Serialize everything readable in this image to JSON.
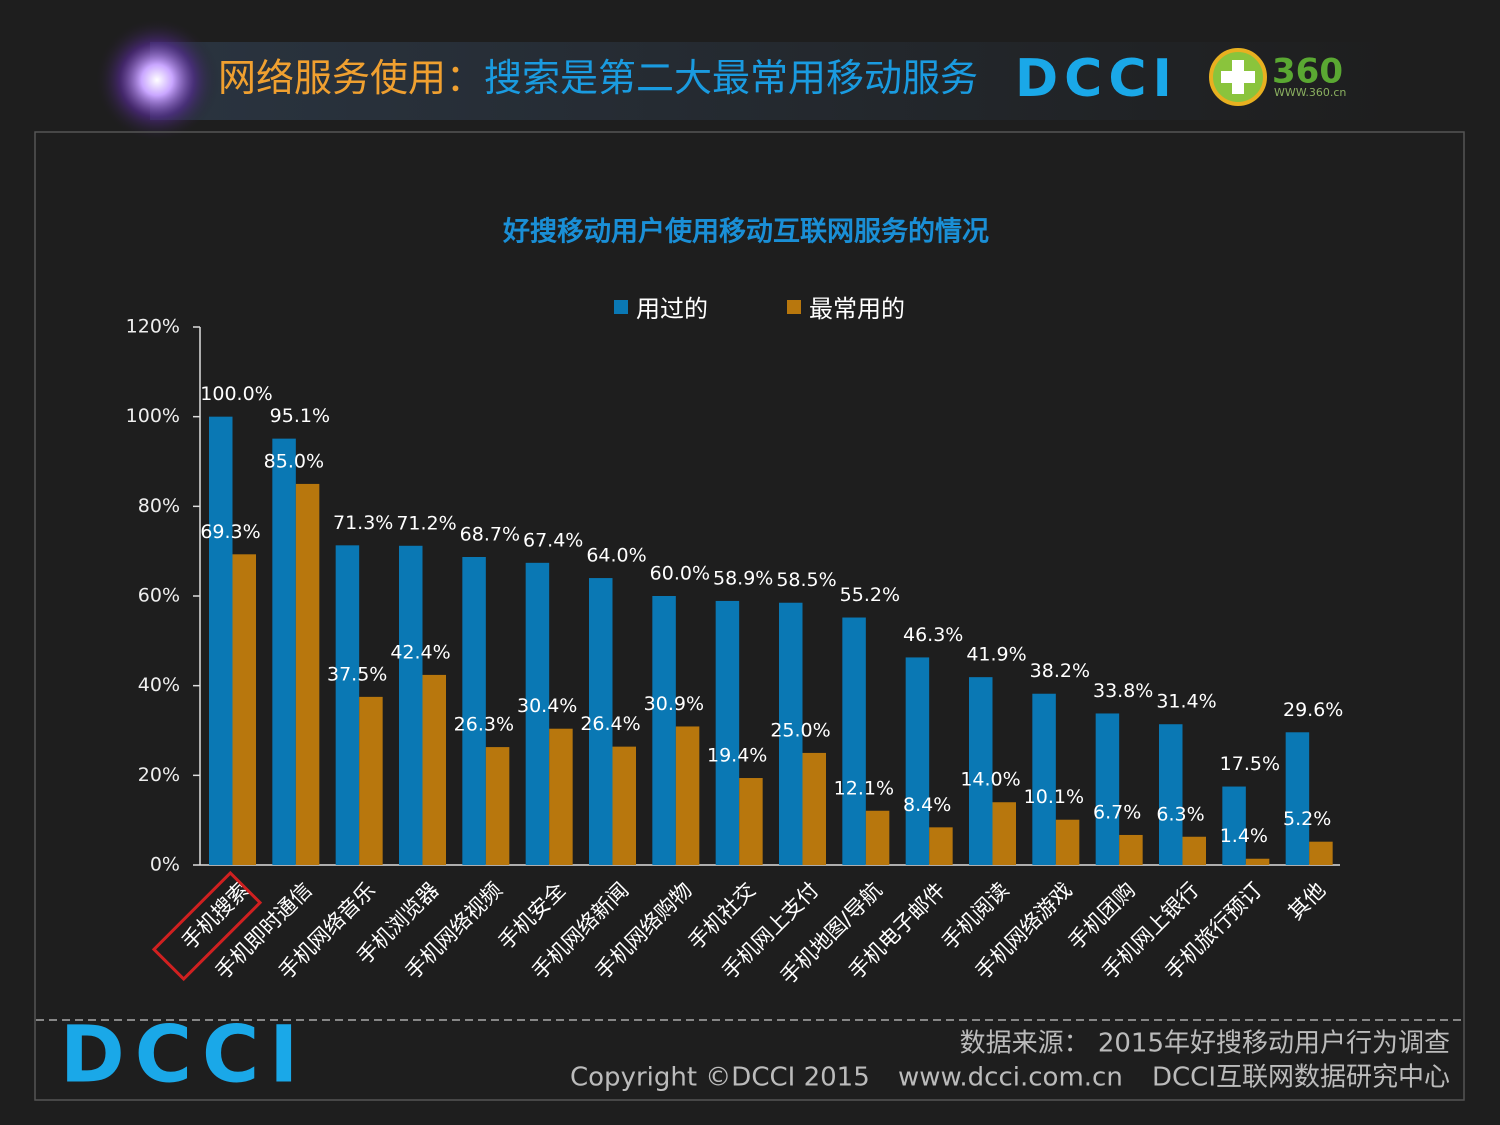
{
  "header": {
    "title_lead": "网络服务使用：",
    "title_main": "搜索是第二大最常用移动服务",
    "logo": "DCCI",
    "partner_logo": "360",
    "partner_url": "WWW.360.cn"
  },
  "chart_data": {
    "type": "bar",
    "title": "好搜移动用户使用移动互联网服务的情况",
    "categories": [
      "手机搜索",
      "手机即时通信",
      "手机网络音乐",
      "手机浏览器",
      "手机网络视频",
      "手机安全",
      "手机网络新闻",
      "手机网络购物",
      "手机社交",
      "手机网上支付",
      "手机地图/导航",
      "手机电子邮件",
      "手机阅读",
      "手机网络游戏",
      "手机团购",
      "手机网上银行",
      "手机旅行预订",
      "其他"
    ],
    "series": [
      {
        "name": "用过的",
        "color": "#0a78b4",
        "values": [
          100.0,
          95.1,
          71.3,
          71.2,
          68.7,
          67.4,
          64.0,
          60.0,
          58.9,
          58.5,
          55.2,
          46.3,
          41.9,
          38.2,
          33.8,
          31.4,
          17.5,
          29.6
        ],
        "value_labels": [
          "100.0%",
          "95.1%",
          "71.3%",
          "71.2%",
          "68.7%",
          "67.4%",
          "64.0%",
          "60.0%",
          "58.9%",
          "58.5%",
          "55.2%",
          "46.3%",
          "41.9%",
          "38.2%",
          "33.8%",
          "31.4%",
          "17.5%",
          "29.6%"
        ]
      },
      {
        "name": "最常用的",
        "color": "#b8770d",
        "values": [
          69.3,
          85.0,
          37.5,
          42.4,
          26.3,
          30.4,
          26.4,
          30.9,
          19.4,
          25.0,
          12.1,
          8.4,
          14.0,
          10.1,
          6.7,
          6.3,
          1.4,
          5.2
        ],
        "value_labels": [
          "69.3%",
          "85.0%",
          "37.5%",
          "42.4%",
          "26.3%",
          "30.4%",
          "26.4%",
          "30.9%",
          "19.4%",
          "25.0%",
          "12.1%",
          "8.4%",
          "14.0%",
          "10.1%",
          "6.7%",
          "6.3%",
          "1.4%",
          "5.2%"
        ]
      }
    ],
    "ylim": [
      0,
      120
    ],
    "yticks": [
      {
        "value": 0,
        "label": "0%"
      },
      {
        "value": 20,
        "label": "20%"
      },
      {
        "value": 40,
        "label": "40%"
      },
      {
        "value": 60,
        "label": "60%"
      },
      {
        "value": 80,
        "label": "80%"
      },
      {
        "value": 100,
        "label": "100%"
      },
      {
        "value": 120,
        "label": "120%"
      }
    ],
    "legend": "top",
    "grid": false
  },
  "footer": {
    "source": "数据来源： 2015年好搜移动用户行为调查",
    "copyright": "Copyright ©DCCI 2015",
    "url": "www.dcci.com.cn",
    "org": "DCCI互联网数据研究中心",
    "logo": "DCCI"
  }
}
